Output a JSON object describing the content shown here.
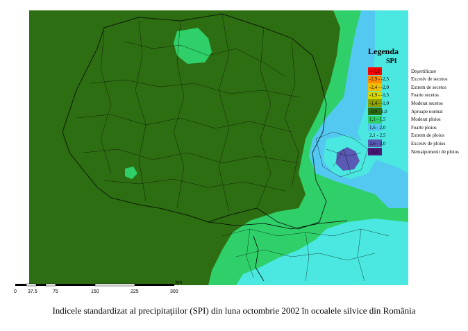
{
  "legend": {
    "title": "Legenda",
    "subtitle": "SPI",
    "items": [
      {
        "range": "<-3,0",
        "label": "Deşertificare",
        "color": "#ff0000"
      },
      {
        "range": "-2,9 - -2,5",
        "label": "Excesiv de secetos",
        "color": "#ff8c00"
      },
      {
        "range": "-2,4 - -2,0",
        "label": "Extrem de secetos",
        "color": "#f0c000"
      },
      {
        "range": "-1,9 - -1,5",
        "label": "Foarte secetos",
        "color": "#d6d600"
      },
      {
        "range": "-1,4 - -1,0",
        "label": "Moderat secetos",
        "color": "#8ca000"
      },
      {
        "range": "-0,9 - 1,0",
        "label": "Aproape normal",
        "color": "#2e6e12"
      },
      {
        "range": "1,1 - 1,5",
        "label": "Moderat ploios",
        "color": "#2fd06a"
      },
      {
        "range": "1,6 - 2,0",
        "label": "Foarte ploios",
        "color": "#53c8f0"
      },
      {
        "range": "2,1 - 2,5",
        "label": "Extrem de ploios",
        "color": "#4ae8e0"
      },
      {
        "range": "2,6 - 3,0",
        "label": "Excesiv de ploios",
        "color": "#5a5ab4"
      },
      {
        "range": ">3,0",
        "label": "Nemaipomenit de ploios",
        "color": "#4b1a78"
      }
    ]
  },
  "scale": {
    "ticks": [
      "0",
      "37.5",
      "75",
      "150",
      "225",
      "300"
    ],
    "unit": "km"
  },
  "caption": "Indicele standardizat al precipitaţiilor (SPI) din luna octombrie 2002 în ocoalele silvice din România",
  "colors": {
    "normal": "#2e6e12",
    "moderate_wet": "#2fd06a",
    "very_wet": "#53c8f0",
    "extreme_wet": "#4ae8e0",
    "excessive_wet": "#5a5ab4"
  }
}
